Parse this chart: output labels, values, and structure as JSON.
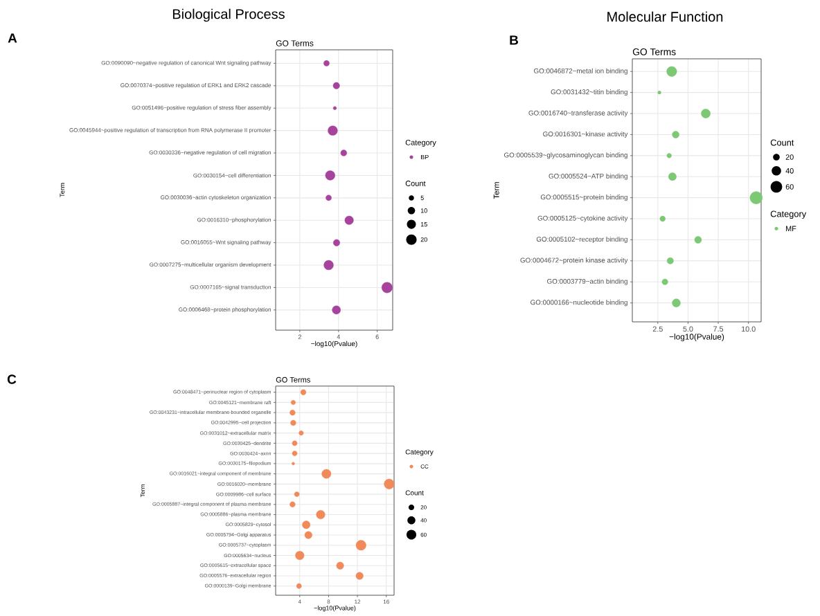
{
  "chart_data": [
    {
      "type": "bubble",
      "orientation": "horizontal",
      "title": "Biological Process",
      "subtitle": "GO Terms",
      "xlabel": "−log10(Pvalue)",
      "ylabel": "Term",
      "legend_title": "Category",
      "annotations": [
        "A",
        "Count"
      ],
      "legend": "right",
      "grid": true,
      "xlim": [
        0.75,
        6.8
      ],
      "xticks": [
        2,
        4,
        6
      ],
      "size_legend": [
        5,
        10,
        15,
        20
      ],
      "categories": [
        "GO:0090090~negative regulation of canonical Wnt signaling pathway",
        "GO:0070374~positive regulation of ERK1 and ERK2 cascade",
        "GO:0051496~positive regulation of stress fiber assembly",
        "GO:0045944~positive regulation of transcription from RNA polymerase II promoter",
        "GO:0030336~negative regulation of cell migration",
        "GO:0030154~cell differentiation",
        "GO:0030036~actin cytoskeleton organization",
        "GO:0016310~phosphorylation",
        "GO:0016055~Wnt signaling pathway",
        "GO:0007275~multicellular organism development",
        "GO:0007165~signal transduction",
        "GO:0006468~protein phosphorylation"
      ],
      "series": [
        {
          "name": "BP",
          "color": "#a6449d",
          "values": [
            3.38,
            3.89,
            3.81,
            3.7,
            4.27,
            3.57,
            3.49,
            4.55,
            3.9,
            3.49,
            6.51,
            3.89
          ],
          "sizes": [
            6,
            8,
            2,
            17,
            7,
            17,
            6,
            14,
            8,
            17,
            21,
            13
          ]
        }
      ]
    },
    {
      "type": "bubble",
      "orientation": "horizontal",
      "title": "Molecular Function",
      "subtitle": "GO Terms",
      "xlabel": "−log10(Pvalue)",
      "ylabel": "Term",
      "legend_title": "Category",
      "annotations": [
        "B",
        "Count"
      ],
      "legend": "right",
      "grid": true,
      "xlim": [
        0.39,
        11.05
      ],
      "xticks": [
        {
          "value": 2.5,
          "label": "2.5"
        },
        {
          "value": 5,
          "label": "5.0"
        },
        {
          "value": 7.5,
          "label": "7.5"
        },
        {
          "value": 10,
          "label": "10.0"
        }
      ],
      "size_legend": [
        20,
        40,
        60
      ],
      "categories": [
        "GO:0046872~metal ion binding",
        "GO:0031432~titin binding",
        "GO:0016740~transferase activity",
        "GO:0016301~kinase activity",
        "GO:0005539~glycosaminoglycan binding",
        "GO:0005524~ATP binding",
        "GO:0005515~protein binding",
        "GO:0005125~cytokine activity",
        "GO:0005102~receptor binding",
        "GO:0004672~protein kinase activity",
        "GO:0003779~actin binding",
        "GO:0000166~nucleotide binding"
      ],
      "series": [
        {
          "name": "MF",
          "color": "#7dc874",
          "values": [
            3.65,
            2.63,
            6.47,
            3.98,
            3.44,
            3.71,
            10.64,
            2.9,
            5.83,
            3.53,
            3.09,
            4.03
          ],
          "sizes": [
            46,
            5,
            38,
            22,
            10,
            28,
            70,
            14,
            22,
            19,
            16,
            31
          ]
        }
      ]
    },
    {
      "type": "bubble",
      "orientation": "horizontal",
      "subtitle": "GO Terms",
      "xlabel": "−log10(Pvalue)",
      "ylabel": "Term",
      "legend_title": "Category",
      "annotations": [
        "C",
        "Count"
      ],
      "legend": "right",
      "grid": true,
      "xlim": [
        0.66,
        17.08
      ],
      "xticks": [
        4,
        8,
        12,
        16
      ],
      "size_legend": [
        20,
        40,
        60
      ],
      "categories": [
        "GO:0048471~perinuclear region of cytoplasm",
        "GO:0045121~membrane raft",
        "GO:0043231~intracellular membrane-bounded organelle",
        "GO:0042995~cell projection",
        "GO:0031012~extracellular matrix",
        "GO:0030425~dendrite",
        "GO:0030424~axon",
        "GO:0030175~filopodium",
        "GO:0016021~integral component of membrane",
        "GO:0016020~membrane",
        "GO:0009986~cell surface",
        "GO:0005887~integral component of plasma membrane",
        "GO:0005886~plasma membrane",
        "GO:0005829~cytosol",
        "GO:0005794~Golgi apparatus",
        "GO:0005737~cytoplasm",
        "GO:0005634~nucleus",
        "GO:0005615~extracellular space",
        "GO:0005576~extracellular region",
        "GO:0000139~Golgi membrane"
      ],
      "series": [
        {
          "name": "CC",
          "color": "#f08a5b",
          "values": [
            4.5,
            3.1,
            3.0,
            3.1,
            4.2,
            3.3,
            3.3,
            3.1,
            7.7,
            16.4,
            3.6,
            3.0,
            6.9,
            4.9,
            5.2,
            12.5,
            4.0,
            9.6,
            12.3,
            3.9
          ],
          "sizes": [
            19,
            13,
            19,
            19,
            13,
            16,
            16,
            5,
            54,
            65,
            16,
            19,
            48,
            39,
            34,
            65,
            48,
            34,
            34,
            16
          ]
        }
      ]
    }
  ]
}
